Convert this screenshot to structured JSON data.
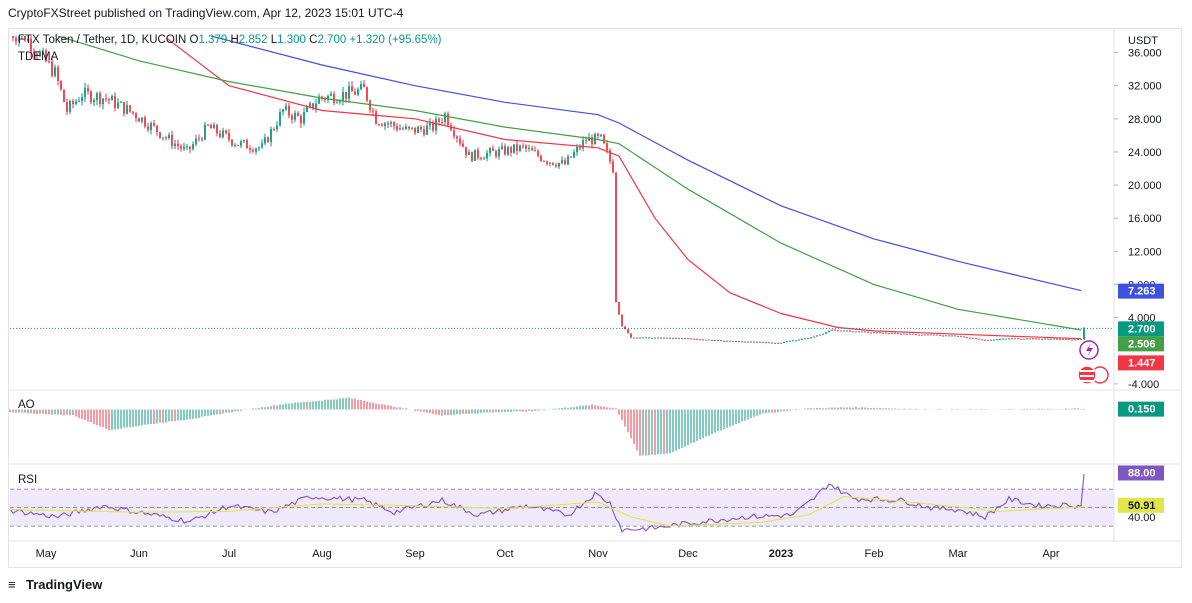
{
  "header": {
    "published": "CryptoFXStreet published on TradingView.com, Apr 12, 2023 15:01 UTC-4"
  },
  "legend": {
    "symbol": "FTX Token / Tether, 1D, KUCOIN",
    "open_label": "O",
    "open": "1.379",
    "high_label": "H",
    "high": "2.852",
    "low_label": "L",
    "low": "1.300",
    "close_label": "C",
    "close": "2.700",
    "change": "+1.320 (+95.65%)",
    "indicator": "TDEMA"
  },
  "currency": "USDT",
  "ao_title": "AO",
  "rsi_title": "RSI",
  "footer": {
    "brand": "TradingView"
  },
  "colors": {
    "up": "#089981",
    "down": "#f23645",
    "ema_fast": "#f23645",
    "ema_mid": "#43a047",
    "ema_slow": "#3f51e0",
    "rsi": "#7e57c2",
    "rsi_ma": "#e3e64a",
    "rsi_band": "#ece4f7"
  },
  "chart_data": [
    {
      "type": "candlestick",
      "title": "FTX Token / Tether, 1D, KUCOIN",
      "y_axis_unit": "USDT",
      "y_ticks": [
        "36.000",
        "32.000",
        "28.000",
        "24.000",
        "20.000",
        "16.000",
        "12.000",
        "8.000",
        "4.000",
        "-4.000"
      ],
      "y_tick_values": [
        36,
        32,
        28,
        24,
        20,
        16,
        12,
        8,
        4,
        -4
      ],
      "ylim": [
        -4.5,
        38
      ],
      "x_tick_labels": [
        "May",
        "Jun",
        "Jul",
        "Aug",
        "Sep",
        "Oct",
        "Nov",
        "Dec",
        "2023",
        "Feb",
        "Mar",
        "Apr"
      ],
      "x_tick_dates": [
        "2022-05-01",
        "2022-06-01",
        "2022-07-01",
        "2022-08-01",
        "2022-09-01",
        "2022-10-01",
        "2022-11-01",
        "2022-12-01",
        "2023-01-01",
        "2023-02-01",
        "2023-03-01",
        "2023-04-01"
      ],
      "x_range": [
        "2022-04-19",
        "2023-04-22"
      ],
      "last_candle": {
        "date": "2023-04-12",
        "open": 1.379,
        "high": 2.852,
        "low": 1.3,
        "close": 2.7
      },
      "price_anchors": [
        {
          "date": "2022-04-19",
          "value": 38.5
        },
        {
          "date": "2022-04-25",
          "value": 38.0
        },
        {
          "date": "2022-05-05",
          "value": 33.5
        },
        {
          "date": "2022-05-09",
          "value": 29.0
        },
        {
          "date": "2022-05-14",
          "value": 31.0
        },
        {
          "date": "2022-05-22",
          "value": 30.5
        },
        {
          "date": "2022-06-01",
          "value": 28.5
        },
        {
          "date": "2022-06-12",
          "value": 25.5
        },
        {
          "date": "2022-06-18",
          "value": 24.0
        },
        {
          "date": "2022-06-25",
          "value": 27.0
        },
        {
          "date": "2022-07-05",
          "value": 25.0
        },
        {
          "date": "2022-07-13",
          "value": 24.5
        },
        {
          "date": "2022-07-20",
          "value": 29.0
        },
        {
          "date": "2022-07-26",
          "value": 28.0
        },
        {
          "date": "2022-08-01",
          "value": 30.5
        },
        {
          "date": "2022-08-10",
          "value": 31.0
        },
        {
          "date": "2022-08-16",
          "value": 31.5
        },
        {
          "date": "2022-08-20",
          "value": 28.0
        },
        {
          "date": "2022-08-31",
          "value": 26.5
        },
        {
          "date": "2022-09-08",
          "value": 27.0
        },
        {
          "date": "2022-09-12",
          "value": 28.5
        },
        {
          "date": "2022-09-20",
          "value": 23.5
        },
        {
          "date": "2022-09-30",
          "value": 24.0
        },
        {
          "date": "2022-10-08",
          "value": 24.5
        },
        {
          "date": "2022-10-16",
          "value": 23.0
        },
        {
          "date": "2022-10-22",
          "value": 22.5
        },
        {
          "date": "2022-10-29",
          "value": 25.5
        },
        {
          "date": "2022-11-03",
          "value": 25.5
        },
        {
          "date": "2022-11-07",
          "value": 22.0
        },
        {
          "date": "2022-11-08",
          "value": 6.0
        },
        {
          "date": "2022-11-10",
          "value": 3.0
        },
        {
          "date": "2022-11-13",
          "value": 1.6
        },
        {
          "date": "2022-12-01",
          "value": 1.5
        },
        {
          "date": "2022-12-14",
          "value": 1.2
        },
        {
          "date": "2023-01-01",
          "value": 0.95
        },
        {
          "date": "2023-01-12",
          "value": 1.6
        },
        {
          "date": "2023-01-19",
          "value": 2.5
        },
        {
          "date": "2023-02-01",
          "value": 2.2
        },
        {
          "date": "2023-03-01",
          "value": 1.8
        },
        {
          "date": "2023-03-11",
          "value": 1.3
        },
        {
          "date": "2023-03-20",
          "value": 1.5
        },
        {
          "date": "2023-04-11",
          "value": 1.38
        }
      ],
      "series": [
        {
          "name": "EMA fast",
          "color": "#f23645",
          "last_value": 1.447,
          "points": [
            {
              "date": "2022-06-10",
              "value": 37.8
            },
            {
              "date": "2022-07-01",
              "value": 32.0
            },
            {
              "date": "2022-08-01",
              "value": 29.0
            },
            {
              "date": "2022-09-01",
              "value": 28.0
            },
            {
              "date": "2022-10-01",
              "value": 25.5
            },
            {
              "date": "2022-11-01",
              "value": 24.5
            },
            {
              "date": "2022-11-08",
              "value": 23.5
            },
            {
              "date": "2022-11-20",
              "value": 16.0
            },
            {
              "date": "2022-12-01",
              "value": 11.0
            },
            {
              "date": "2022-12-15",
              "value": 7.0
            },
            {
              "date": "2023-01-01",
              "value": 4.5
            },
            {
              "date": "2023-01-20",
              "value": 2.8
            },
            {
              "date": "2023-02-01",
              "value": 2.4
            },
            {
              "date": "2023-03-01",
              "value": 2.0
            },
            {
              "date": "2023-04-11",
              "value": 1.447
            }
          ]
        },
        {
          "name": "EMA mid",
          "color": "#43a047",
          "last_value": 2.506,
          "points": [
            {
              "date": "2022-05-05",
              "value": 38.0
            },
            {
              "date": "2022-06-01",
              "value": 35.0
            },
            {
              "date": "2022-07-01",
              "value": 32.5
            },
            {
              "date": "2022-08-01",
              "value": 30.5
            },
            {
              "date": "2022-09-01",
              "value": 29.0
            },
            {
              "date": "2022-10-01",
              "value": 27.0
            },
            {
              "date": "2022-11-01",
              "value": 25.5
            },
            {
              "date": "2022-11-08",
              "value": 25.0
            },
            {
              "date": "2022-12-01",
              "value": 19.5
            },
            {
              "date": "2023-01-01",
              "value": 13.0
            },
            {
              "date": "2023-02-01",
              "value": 8.0
            },
            {
              "date": "2023-03-01",
              "value": 5.0
            },
            {
              "date": "2023-04-11",
              "value": 2.506
            }
          ]
        },
        {
          "name": "EMA slow",
          "color": "#3f51e0",
          "last_value": 7.263,
          "points": [
            {
              "date": "2022-06-25",
              "value": 38.0
            },
            {
              "date": "2022-08-01",
              "value": 34.5
            },
            {
              "date": "2022-09-01",
              "value": 32.0
            },
            {
              "date": "2022-10-01",
              "value": 30.0
            },
            {
              "date": "2022-11-01",
              "value": 28.5
            },
            {
              "date": "2022-11-08",
              "value": 27.5
            },
            {
              "date": "2022-12-01",
              "value": 23.0
            },
            {
              "date": "2023-01-01",
              "value": 17.5
            },
            {
              "date": "2023-02-01",
              "value": 13.5
            },
            {
              "date": "2023-03-01",
              "value": 10.8
            },
            {
              "date": "2023-04-11",
              "value": 7.263
            }
          ]
        }
      ],
      "price_labels": [
        "2.700",
        "7.263",
        "2.506",
        "1.447"
      ]
    },
    {
      "type": "histogram",
      "title": "AO",
      "last_value": 0.15,
      "value_label": "0.150",
      "anchors": [
        {
          "date": "2022-04-19",
          "value": -0.5
        },
        {
          "date": "2022-05-10",
          "value": -1.0
        },
        {
          "date": "2022-05-22",
          "value": -3.5
        },
        {
          "date": "2022-06-05",
          "value": -2.5
        },
        {
          "date": "2022-06-20",
          "value": -1.5
        },
        {
          "date": "2022-07-01",
          "value": -0.5
        },
        {
          "date": "2022-07-20",
          "value": 1.0
        },
        {
          "date": "2022-08-10",
          "value": 2.0
        },
        {
          "date": "2022-08-25",
          "value": 0.5
        },
        {
          "date": "2022-09-10",
          "value": -1.0
        },
        {
          "date": "2022-09-25",
          "value": -0.5
        },
        {
          "date": "2022-10-10",
          "value": -0.3
        },
        {
          "date": "2022-10-30",
          "value": 0.8
        },
        {
          "date": "2022-11-07",
          "value": 0.2
        },
        {
          "date": "2022-11-15",
          "value": -8.0
        },
        {
          "date": "2022-11-25",
          "value": -7.5
        },
        {
          "date": "2022-12-10",
          "value": -4.0
        },
        {
          "date": "2022-12-25",
          "value": -0.8
        },
        {
          "date": "2023-01-10",
          "value": 0.2
        },
        {
          "date": "2023-01-25",
          "value": 0.4
        },
        {
          "date": "2023-02-15",
          "value": 0.05
        },
        {
          "date": "2023-03-15",
          "value": 0.02
        },
        {
          "date": "2023-04-11",
          "value": 0.15
        }
      ],
      "ylim": [
        -9,
        3
      ]
    },
    {
      "type": "line",
      "title": "RSI",
      "ylim": [
        15,
        95
      ],
      "band": [
        30,
        70
      ],
      "mid": 50,
      "value_labels": [
        "88.00",
        "50.91",
        "40.00"
      ],
      "series": [
        {
          "name": "RSI",
          "color": "#7e57c2",
          "anchors": [
            {
              "date": "2022-04-19",
              "value": 47
            },
            {
              "date": "2022-05-05",
              "value": 40
            },
            {
              "date": "2022-05-20",
              "value": 52
            },
            {
              "date": "2022-06-01",
              "value": 45
            },
            {
              "date": "2022-06-18",
              "value": 35
            },
            {
              "date": "2022-07-01",
              "value": 52
            },
            {
              "date": "2022-07-15",
              "value": 45
            },
            {
              "date": "2022-07-28",
              "value": 62
            },
            {
              "date": "2022-08-15",
              "value": 58
            },
            {
              "date": "2022-08-25",
              "value": 45
            },
            {
              "date": "2022-09-10",
              "value": 58
            },
            {
              "date": "2022-09-22",
              "value": 42
            },
            {
              "date": "2022-10-08",
              "value": 52
            },
            {
              "date": "2022-10-22",
              "value": 42
            },
            {
              "date": "2022-10-31",
              "value": 65
            },
            {
              "date": "2022-11-05",
              "value": 55
            },
            {
              "date": "2022-11-09",
              "value": 26
            },
            {
              "date": "2022-11-20",
              "value": 28
            },
            {
              "date": "2022-12-01",
              "value": 33
            },
            {
              "date": "2022-12-20",
              "value": 40
            },
            {
              "date": "2023-01-05",
              "value": 42
            },
            {
              "date": "2023-01-12",
              "value": 60
            },
            {
              "date": "2023-01-17",
              "value": 76
            },
            {
              "date": "2023-01-25",
              "value": 60
            },
            {
              "date": "2023-02-10",
              "value": 58
            },
            {
              "date": "2023-02-20",
              "value": 50
            },
            {
              "date": "2023-03-01",
              "value": 48
            },
            {
              "date": "2023-03-10",
              "value": 40
            },
            {
              "date": "2023-03-18",
              "value": 59
            },
            {
              "date": "2023-03-28",
              "value": 52
            },
            {
              "date": "2023-04-08",
              "value": 53
            },
            {
              "date": "2023-04-11",
              "value": 51
            },
            {
              "date": "2023-04-12",
              "value": 88
            }
          ]
        },
        {
          "name": "RSI MA",
          "color": "#e3e64a",
          "anchors": [
            {
              "date": "2022-04-19",
              "value": 48
            },
            {
              "date": "2022-06-01",
              "value": 45
            },
            {
              "date": "2022-07-01",
              "value": 46
            },
            {
              "date": "2022-08-01",
              "value": 54
            },
            {
              "date": "2022-09-01",
              "value": 52
            },
            {
              "date": "2022-10-01",
              "value": 49
            },
            {
              "date": "2022-11-01",
              "value": 56
            },
            {
              "date": "2022-11-12",
              "value": 40
            },
            {
              "date": "2022-11-25",
              "value": 30
            },
            {
              "date": "2022-12-25",
              "value": 34
            },
            {
              "date": "2023-01-10",
              "value": 42
            },
            {
              "date": "2023-01-22",
              "value": 62
            },
            {
              "date": "2023-02-10",
              "value": 57
            },
            {
              "date": "2023-03-15",
              "value": 46
            },
            {
              "date": "2023-04-12",
              "value": 50.91
            }
          ]
        }
      ]
    }
  ]
}
